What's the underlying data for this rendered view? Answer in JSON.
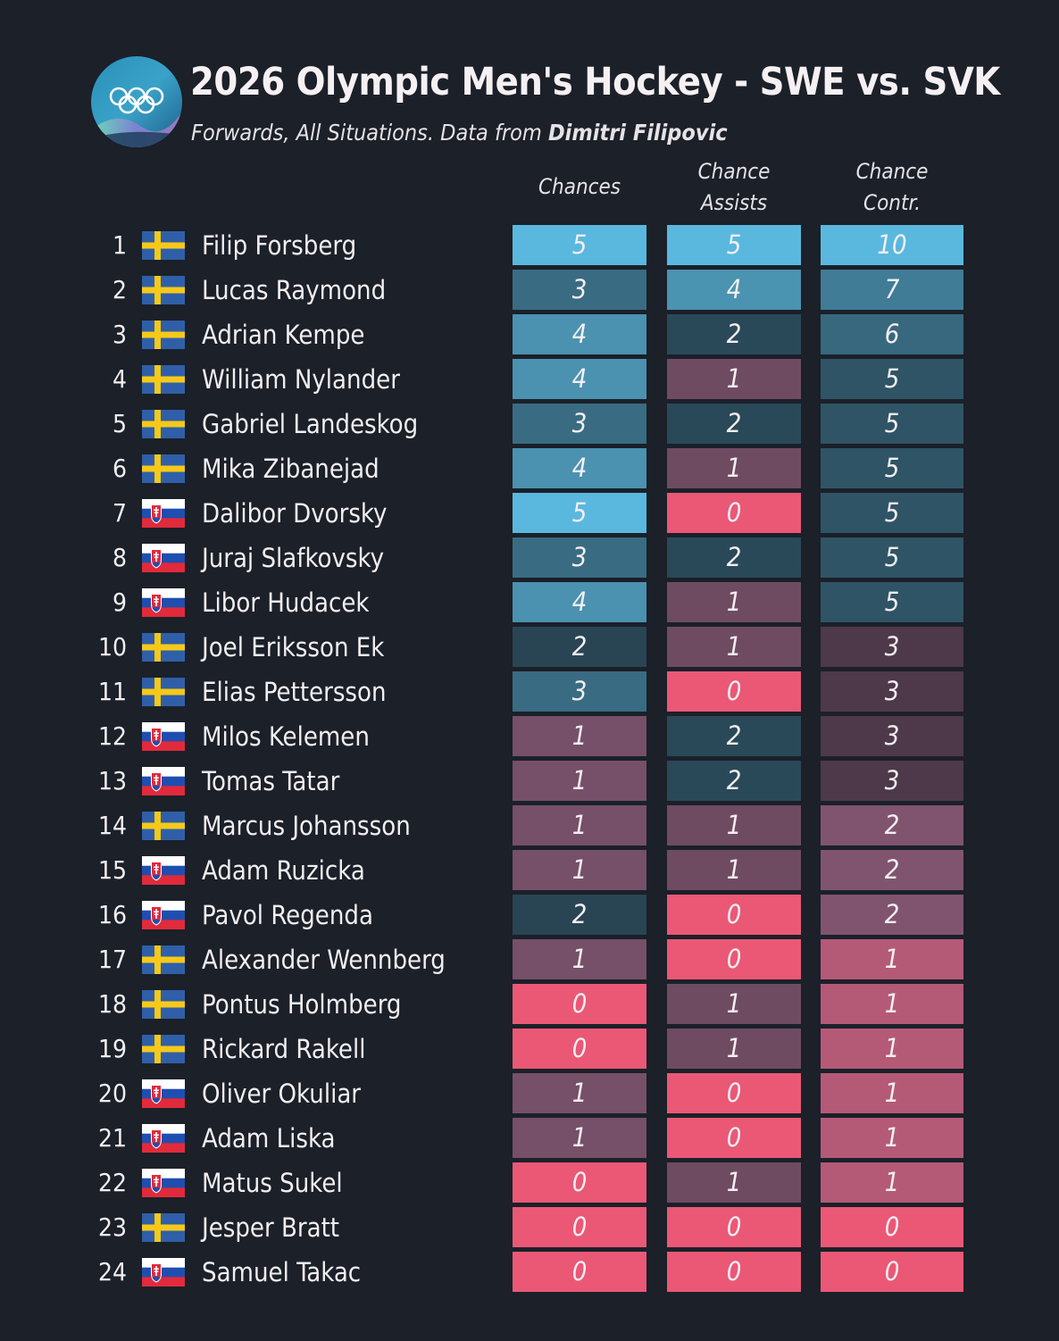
{
  "header": {
    "title": "2026 Olympic Men's Hockey - SWE vs. SVK",
    "subtitle_prefix": "Forwards, All Situations. Data from ",
    "subtitle_source": "Dimitri Filipovic"
  },
  "colors": {
    "background": "#1b2029",
    "high": "#5ab8de",
    "low": "#ea5876",
    "sweden_blue": "#2f5fa8",
    "sweden_yellow": "#f6c919"
  },
  "icons": {
    "logo": "olympic-rings-icon",
    "sweden": "sweden-flag-icon",
    "slovakia": "slovakia-flag-icon"
  },
  "chart_data": {
    "type": "table",
    "title": "2026 Olympic Men's Hockey - SWE vs. SVK",
    "subtitle": "Forwards, All Situations. Data from Dimitri Filipovic",
    "columns": [
      "Chances",
      "Chance\nAssists",
      "Chance\nContr."
    ],
    "column_lines": [
      [
        "Chances"
      ],
      [
        "Chance",
        "Assists"
      ],
      [
        "Chance",
        "Contr."
      ]
    ],
    "rows": [
      {
        "rank": "1",
        "country": "SWE",
        "player": "Filip Forsberg",
        "values": [
          5,
          5,
          10
        ]
      },
      {
        "rank": "2",
        "country": "SWE",
        "player": "Lucas Raymond",
        "values": [
          3,
          4,
          7
        ]
      },
      {
        "rank": "3",
        "country": "SWE",
        "player": "Adrian Kempe",
        "values": [
          4,
          2,
          6
        ]
      },
      {
        "rank": "4",
        "country": "SWE",
        "player": "William Nylander",
        "values": [
          4,
          1,
          5
        ]
      },
      {
        "rank": "5",
        "country": "SWE",
        "player": "Gabriel Landeskog",
        "values": [
          3,
          2,
          5
        ]
      },
      {
        "rank": "6",
        "country": "SWE",
        "player": "Mika Zibanejad",
        "values": [
          4,
          1,
          5
        ]
      },
      {
        "rank": "7",
        "country": "SVK",
        "player": "Dalibor Dvorsky",
        "values": [
          5,
          0,
          5
        ]
      },
      {
        "rank": "8",
        "country": "SVK",
        "player": "Juraj Slafkovsky",
        "values": [
          3,
          2,
          5
        ]
      },
      {
        "rank": "9",
        "country": "SVK",
        "player": "Libor Hudacek",
        "values": [
          4,
          1,
          5
        ]
      },
      {
        "rank": "10",
        "country": "SWE",
        "player": "Joel Eriksson Ek",
        "values": [
          2,
          1,
          3
        ]
      },
      {
        "rank": "11",
        "country": "SWE",
        "player": "Elias Pettersson",
        "values": [
          3,
          0,
          3
        ]
      },
      {
        "rank": "12",
        "country": "SVK",
        "player": "Milos Kelemen",
        "values": [
          1,
          2,
          3
        ]
      },
      {
        "rank": "13",
        "country": "SVK",
        "player": "Tomas Tatar",
        "values": [
          1,
          2,
          3
        ]
      },
      {
        "rank": "14",
        "country": "SWE",
        "player": "Marcus Johansson",
        "values": [
          1,
          1,
          2
        ]
      },
      {
        "rank": "15",
        "country": "SVK",
        "player": "Adam Ruzicka",
        "values": [
          1,
          1,
          2
        ]
      },
      {
        "rank": "16",
        "country": "SVK",
        "player": "Pavol Regenda",
        "values": [
          2,
          0,
          2
        ]
      },
      {
        "rank": "17",
        "country": "SWE",
        "player": "Alexander Wennberg",
        "values": [
          1,
          0,
          1
        ]
      },
      {
        "rank": "18",
        "country": "SWE",
        "player": "Pontus Holmberg",
        "values": [
          0,
          1,
          1
        ]
      },
      {
        "rank": "19",
        "country": "SWE",
        "player": "Rickard Rakell",
        "values": [
          0,
          1,
          1
        ]
      },
      {
        "rank": "20",
        "country": "SVK",
        "player": "Oliver Okuliar",
        "values": [
          1,
          0,
          1
        ]
      },
      {
        "rank": "21",
        "country": "SVK",
        "player": "Adam Liska",
        "values": [
          1,
          0,
          1
        ]
      },
      {
        "rank": "22",
        "country": "SVK",
        "player": "Matus Sukel",
        "values": [
          0,
          1,
          1
        ]
      },
      {
        "rank": "23",
        "country": "SWE",
        "player": "Jesper Bratt",
        "values": [
          0,
          0,
          0
        ]
      },
      {
        "rank": "24",
        "country": "SVK",
        "player": "Samuel Takac",
        "values": [
          0,
          0,
          0
        ]
      }
    ]
  }
}
